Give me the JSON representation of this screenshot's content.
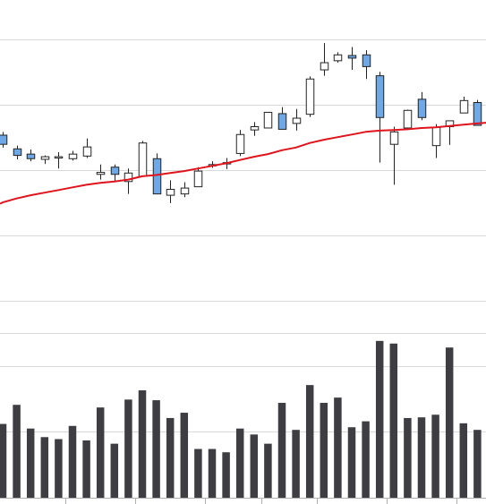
{
  "chart_data": {
    "type": "candlestick-with-volume",
    "title": "",
    "grid": true,
    "legend": "none",
    "colors": {
      "up_fill": "#ffffff",
      "down_fill": "#6fa8e6",
      "candle_stroke": "#222222",
      "moving_average": "#e0141c",
      "volume_bar": "#3d3d42",
      "grid": "#d9d9d9",
      "axis": "#b0b0b0"
    },
    "price_panel": {
      "ylim": [
        85,
        136
      ],
      "gridlines": [
        130,
        120,
        110,
        100,
        90
      ],
      "candles": [
        {
          "open": 115.3,
          "high": 115.8,
          "low": 113.4,
          "close": 113.9
        },
        {
          "open": 113.2,
          "high": 113.7,
          "low": 111.6,
          "close": 112.2
        },
        {
          "open": 112.4,
          "high": 113.1,
          "low": 111.3,
          "close": 111.7
        },
        {
          "open": 111.6,
          "high": 112.2,
          "low": 110.9,
          "close": 112.0
        },
        {
          "open": 111.9,
          "high": 112.7,
          "low": 110.2,
          "close": 112.0
        },
        {
          "open": 111.7,
          "high": 112.9,
          "low": 111.4,
          "close": 112.4
        },
        {
          "open": 112.1,
          "high": 114.8,
          "low": 111.8,
          "close": 113.5
        },
        {
          "open": 109.3,
          "high": 110.8,
          "low": 108.5,
          "close": 109.6
        },
        {
          "open": 110.4,
          "high": 110.8,
          "low": 108.2,
          "close": 109.3
        },
        {
          "open": 108.2,
          "high": 110.2,
          "low": 106.3,
          "close": 109.5
        },
        {
          "open": 109.0,
          "high": 114.4,
          "low": 109.0,
          "close": 114.1
        },
        {
          "open": 111.7,
          "high": 112.5,
          "low": 106.3,
          "close": 106.3
        },
        {
          "open": 106.1,
          "high": 108.4,
          "low": 104.9,
          "close": 107.0
        },
        {
          "open": 106.3,
          "high": 108.1,
          "low": 105.8,
          "close": 107.2
        },
        {
          "open": 107.4,
          "high": 110.4,
          "low": 107.4,
          "close": 109.8
        },
        {
          "open": 110.8,
          "high": 111.3,
          "low": 110.3,
          "close": 110.8
        },
        {
          "open": 111.0,
          "high": 111.8,
          "low": 110.1,
          "close": 111.1
        },
        {
          "open": 112.5,
          "high": 116.1,
          "low": 112.1,
          "close": 115.4
        },
        {
          "open": 116.1,
          "high": 117.3,
          "low": 115.2,
          "close": 116.6
        },
        {
          "open": 116.4,
          "high": 118.8,
          "low": 116.4,
          "close": 118.8
        },
        {
          "open": 118.6,
          "high": 119.6,
          "low": 116.2,
          "close": 116.2
        },
        {
          "open": 117.1,
          "high": 119.3,
          "low": 116.0,
          "close": 117.9
        },
        {
          "open": 118.5,
          "high": 124.3,
          "low": 118.1,
          "close": 123.9
        },
        {
          "open": 125.3,
          "high": 129.4,
          "low": 124.4,
          "close": 126.4
        },
        {
          "open": 126.7,
          "high": 128.0,
          "low": 126.4,
          "close": 127.6
        },
        {
          "open": 127.5,
          "high": 128.8,
          "low": 125.3,
          "close": 127.1
        },
        {
          "open": 127.6,
          "high": 128.3,
          "low": 123.9,
          "close": 125.8
        },
        {
          "open": 124.4,
          "high": 125.0,
          "low": 111.1,
          "close": 118.0
        },
        {
          "open": 113.9,
          "high": 116.6,
          "low": 107.7,
          "close": 115.8
        },
        {
          "open": 116.4,
          "high": 119.2,
          "low": 116.4,
          "close": 119.1
        },
        {
          "open": 120.8,
          "high": 121.9,
          "low": 117.6,
          "close": 118.0
        },
        {
          "open": 113.7,
          "high": 117.0,
          "low": 111.8,
          "close": 116.5
        },
        {
          "open": 116.6,
          "high": 117.5,
          "low": 113.8,
          "close": 117.5
        },
        {
          "open": 118.7,
          "high": 121.2,
          "low": 118.7,
          "close": 120.6
        },
        {
          "open": 120.3,
          "high": 120.7,
          "low": 116.8,
          "close": 116.8
        }
      ],
      "moving_average": [
        105.0,
        105.6,
        106.1,
        106.5,
        106.9,
        107.3,
        107.7,
        108.0,
        108.2,
        108.5,
        109.0,
        109.2,
        109.5,
        109.8,
        110.2,
        110.6,
        111.0,
        111.5,
        112.0,
        112.4,
        113.0,
        113.4,
        114.1,
        114.6,
        115.0,
        115.4,
        115.8,
        116.0,
        116.1,
        116.2,
        116.4,
        116.5,
        116.7,
        116.9,
        117.1
      ]
    },
    "volume_panel": {
      "ylim": [
        0,
        25
      ],
      "gridlines": [
        20,
        10
      ],
      "values": [
        11.2,
        14.1,
        10.5,
        9.2,
        8.9,
        10.9,
        8.7,
        13.7,
        8.2,
        14.9,
        16.3,
        14.8,
        12.1,
        12.9,
        7.4,
        7.4,
        6.9,
        10.5,
        9.6,
        8.2,
        14.4,
        10.3,
        17.1,
        14.4,
        15.2,
        10.7,
        11.6,
        23.8,
        23.4,
        12.1,
        12.2,
        12.6,
        22.8,
        11.3,
        10.3
      ]
    }
  }
}
